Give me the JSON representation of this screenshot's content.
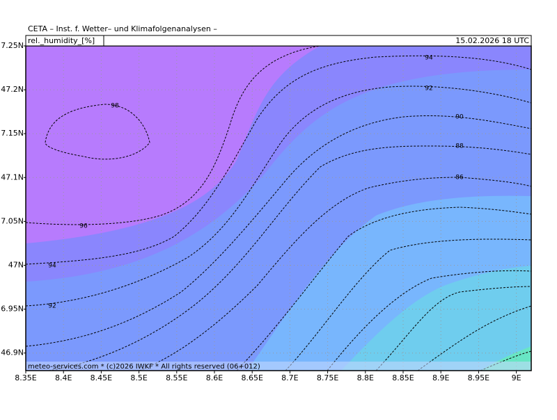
{
  "header": {
    "title": "CETA – Inst. f. Wetter– und Klimafolgenanalysen –",
    "variable": "rel._humidity_[%]",
    "datetime": "15.02.2026 18 UTC"
  },
  "axes": {
    "x_labels": [
      "8.35E",
      "8.4E",
      "8.45E",
      "8.5E",
      "8.55E",
      "8.6E",
      "8.65E",
      "8.7E",
      "8.75E",
      "8.8E",
      "8.85E",
      "8.9E",
      "8.95E",
      "9E"
    ],
    "y_labels": [
      "7.25N",
      "47.2N",
      "7.15N",
      "47.1N",
      "7.05N",
      "47N",
      "6.95N",
      "46.9N"
    ]
  },
  "contour_labels": [
    "98",
    "96",
    "94",
    "94",
    "92",
    "92",
    "90",
    "88",
    "86"
  ],
  "footer": "meteo-services.com * (c)2026 IWKF * All rights reserved (06+012)"
}
